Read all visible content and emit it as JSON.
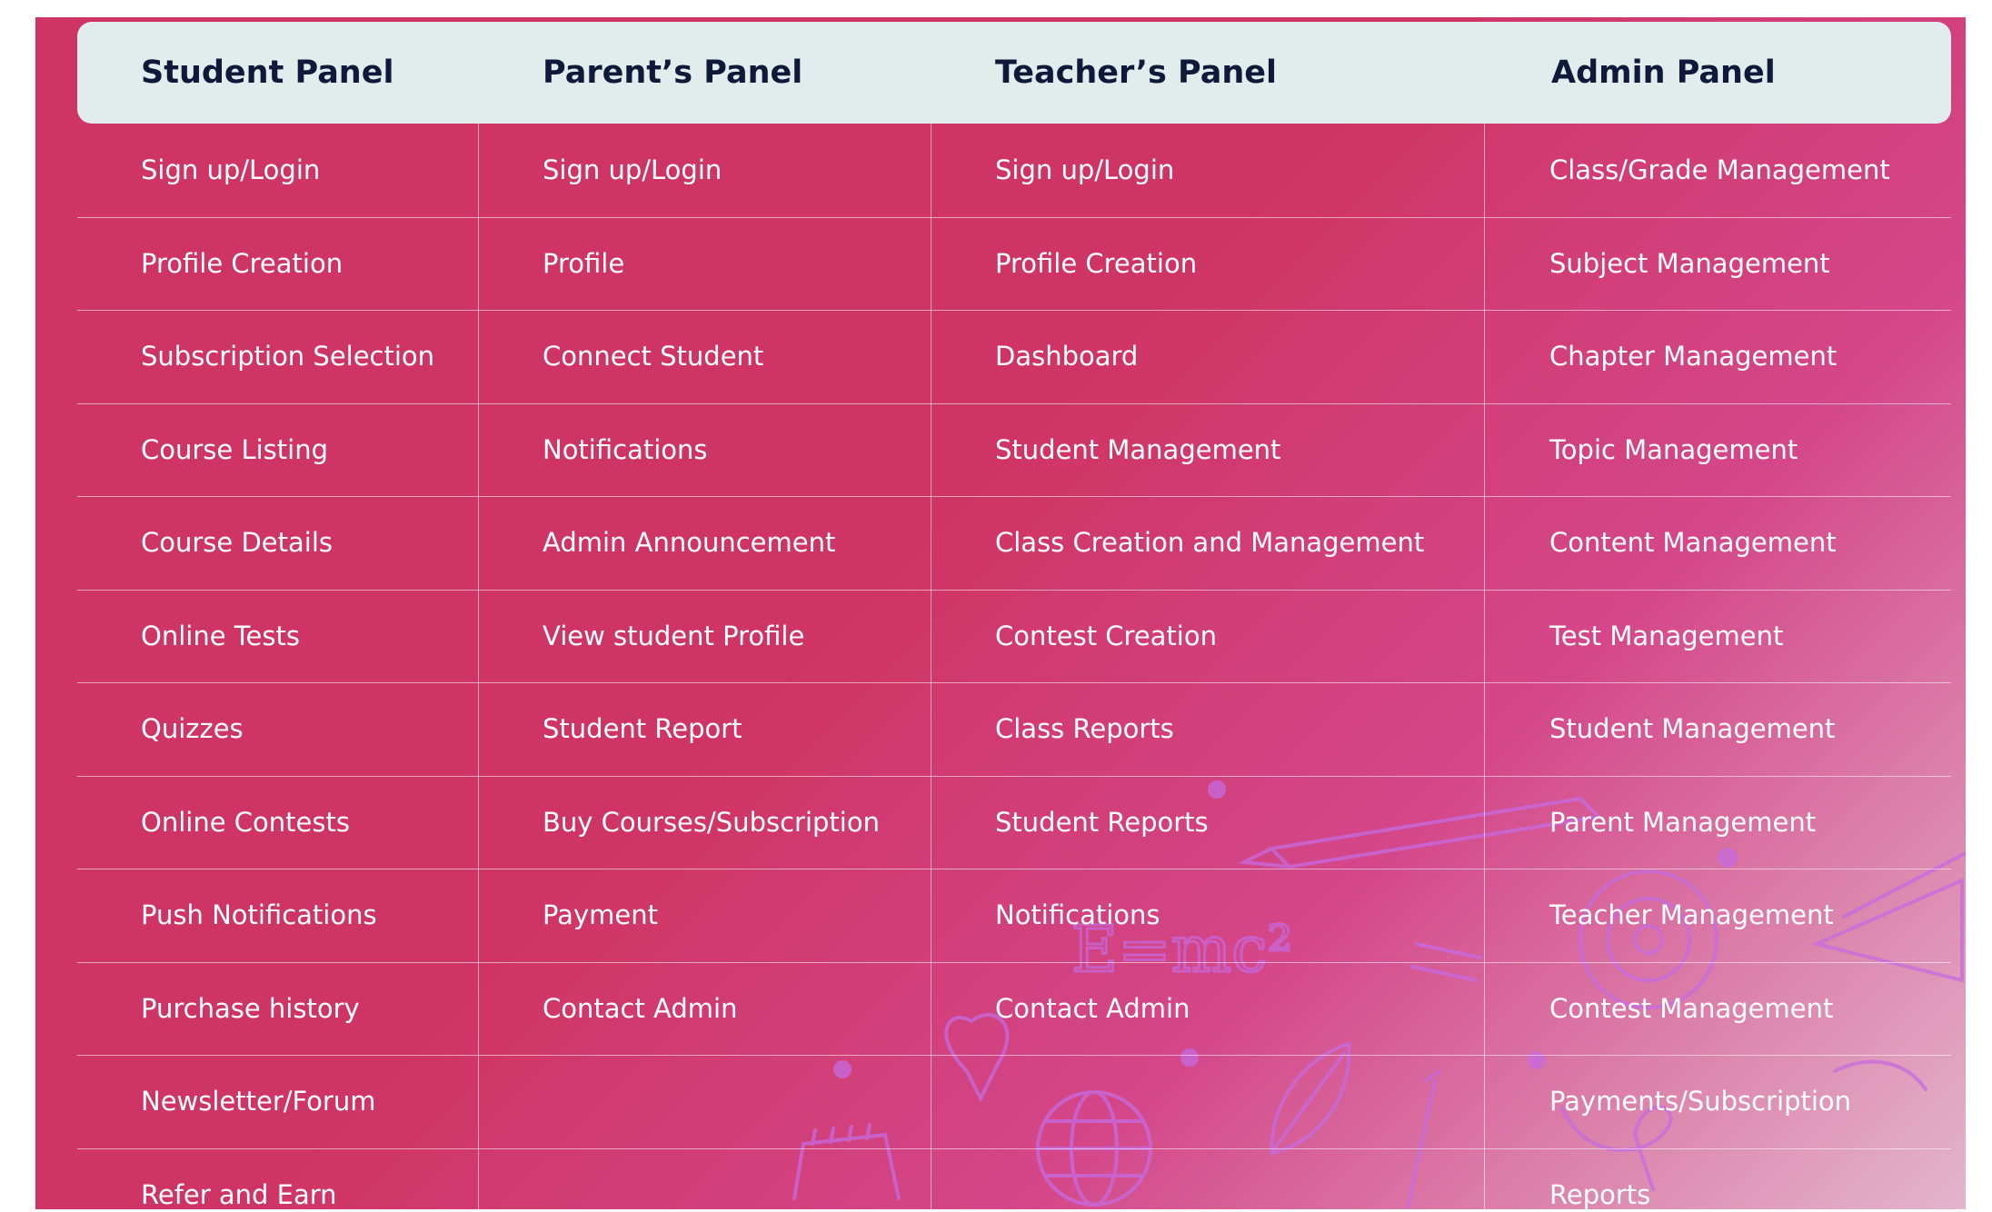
{
  "headers": [
    "Student Panel",
    "Parent’s Panel",
    "Teacher’s Panel",
    "Admin Panel"
  ],
  "columns": [
    [
      "Sign up/Login",
      "Profile Creation",
      "Subscription Selection",
      "Course Listing",
      "Course Details",
      "Online Tests",
      "Quizzes",
      "Online Contests",
      "Push Notifications",
      "Purchase history",
      "Newsletter/Forum",
      "Refer and Earn"
    ],
    [
      "Sign up/Login",
      "Profile",
      "Connect Student",
      "Notifications",
      "Admin Announcement",
      "View student Profile",
      "Student Report",
      "Buy Courses/Subscription",
      "Payment",
      "Contact Admin",
      "",
      ""
    ],
    [
      "Sign up/Login",
      "Profile Creation",
      "Dashboard",
      "Student Management",
      "Class Creation and Management",
      "Contest Creation",
      "Class Reports",
      "Student Reports",
      "Notifications",
      "Contact Admin",
      "",
      ""
    ],
    [
      "Class/Grade Management",
      "Subject Management",
      "Chapter Management",
      "Topic Management",
      "Content Management",
      "Test Management",
      "Student Management",
      "Parent Management",
      "Teacher Management",
      "Contest Management",
      "Payments/Subscription",
      "Reports"
    ]
  ],
  "colors": {
    "background": "#cf3564",
    "header_bg": "#e3ecec",
    "header_text": "#0f1a3a",
    "cell_text": "#ffffff",
    "doodle": "#c66be0"
  },
  "doodle_text": "E=mc²"
}
